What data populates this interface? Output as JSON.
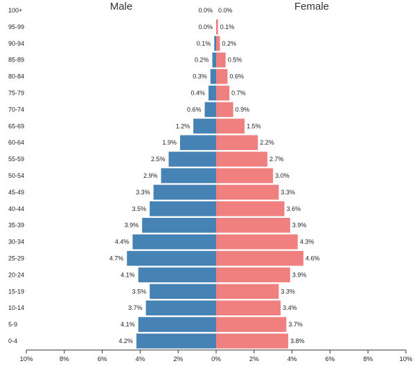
{
  "chart_data": {
    "type": "bar",
    "orientation": "horizontal",
    "subtype": "population-pyramid",
    "categories": [
      "100+",
      "95-99",
      "90-94",
      "85-89",
      "80-84",
      "75-79",
      "70-74",
      "65-69",
      "60-64",
      "55-59",
      "50-54",
      "45-49",
      "40-44",
      "35-39",
      "30-34",
      "25-29",
      "20-24",
      "15-19",
      "10-14",
      "5-9",
      "0-4"
    ],
    "series": [
      {
        "name": "Male",
        "side": "left",
        "color": "#4682b4",
        "values": [
          0.0,
          0.0,
          0.1,
          0.2,
          0.3,
          0.4,
          0.6,
          1.2,
          1.9,
          2.5,
          2.9,
          3.3,
          3.5,
          3.9,
          4.4,
          4.7,
          4.1,
          3.5,
          3.7,
          4.1,
          4.2
        ],
        "labels": [
          "0.0%",
          "0.0%",
          "0.1%",
          "0.2%",
          "0.3%",
          "0.4%",
          "0.6%",
          "1.2%",
          "1.9%",
          "2.5%",
          "2.9%",
          "3.3%",
          "3.5%",
          "3.9%",
          "4.4%",
          "4.7%",
          "4.1%",
          "3.5%",
          "3.7%",
          "4.1%",
          "4.2%"
        ]
      },
      {
        "name": "Female",
        "side": "right",
        "color": "#f08080",
        "values": [
          0.0,
          0.1,
          0.2,
          0.5,
          0.6,
          0.7,
          0.9,
          1.5,
          2.2,
          2.7,
          3.0,
          3.3,
          3.6,
          3.9,
          4.3,
          4.6,
          3.9,
          3.3,
          3.4,
          3.7,
          3.8
        ],
        "labels": [
          "0.0%",
          "0.1%",
          "0.2%",
          "0.5%",
          "0.6%",
          "0.7%",
          "0.9%",
          "1.5%",
          "2.2%",
          "2.7%",
          "3.0%",
          "3.3%",
          "3.6%",
          "3.9%",
          "4.3%",
          "4.6%",
          "3.9%",
          "3.3%",
          "3.4%",
          "3.7%",
          "3.8%"
        ]
      }
    ],
    "x_range": [
      -10,
      10
    ],
    "x_ticks": [
      -10,
      -8,
      -6,
      -4,
      -2,
      0,
      2,
      4,
      6,
      8,
      10
    ],
    "x_tick_labels": [
      "10%",
      "8%",
      "6%",
      "4%",
      "2%",
      "0%",
      "2%",
      "4%",
      "6%",
      "8%",
      "10%"
    ],
    "left_title": "Male",
    "right_title": "Female",
    "xlabel": "",
    "ylabel": "",
    "grid": false,
    "axis_color": "#333333"
  }
}
